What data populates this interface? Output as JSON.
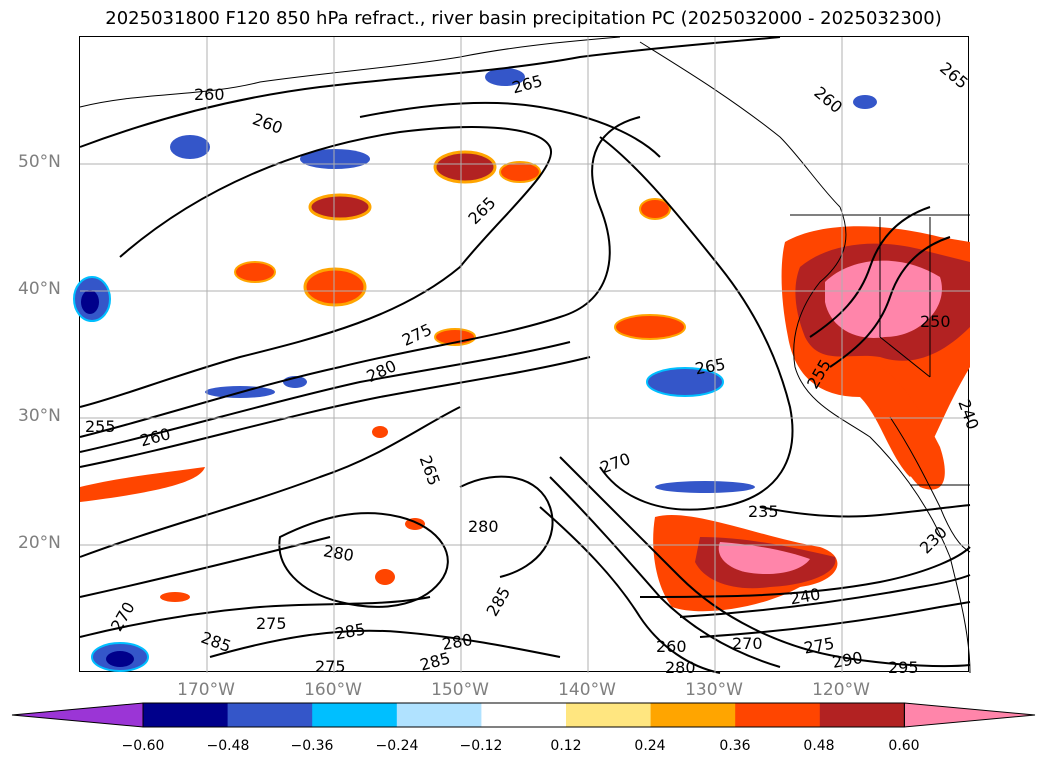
{
  "title": "2025031800 F120 850 hPa refract., river basin precipitation PC (2025032000 - 2025032300)",
  "latitude_labels": [
    "50°N",
    "40°N",
    "30°N",
    "20°N"
  ],
  "longitude_labels": [
    "170°W",
    "160°W",
    "150°W",
    "140°W",
    "130°W",
    "120°W"
  ],
  "contour_labels": [
    "260",
    "260",
    "265",
    "265",
    "260",
    "265",
    "275",
    "280",
    "255",
    "260",
    "265",
    "270",
    "265",
    "255",
    "250",
    "240",
    "235",
    "230",
    "240",
    "280",
    "280",
    "285",
    "275",
    "285",
    "285",
    "280",
    "275",
    "260",
    "270",
    "275",
    "290",
    "295",
    "280",
    "285",
    "270"
  ],
  "colorbar": {
    "ticks": [
      "−0.60",
      "−0.48",
      "−0.36",
      "−0.24",
      "−0.12",
      "0.12",
      "0.24",
      "0.36",
      "0.48",
      "0.60"
    ],
    "colors": [
      "#9b35d6",
      "#00008b",
      "#3456c9",
      "#00bfff",
      "#b0e2ff",
      "#ffffff",
      "#ffe680",
      "#ffa500",
      "#ff4500",
      "#b22222",
      "#ff85aa"
    ]
  }
}
